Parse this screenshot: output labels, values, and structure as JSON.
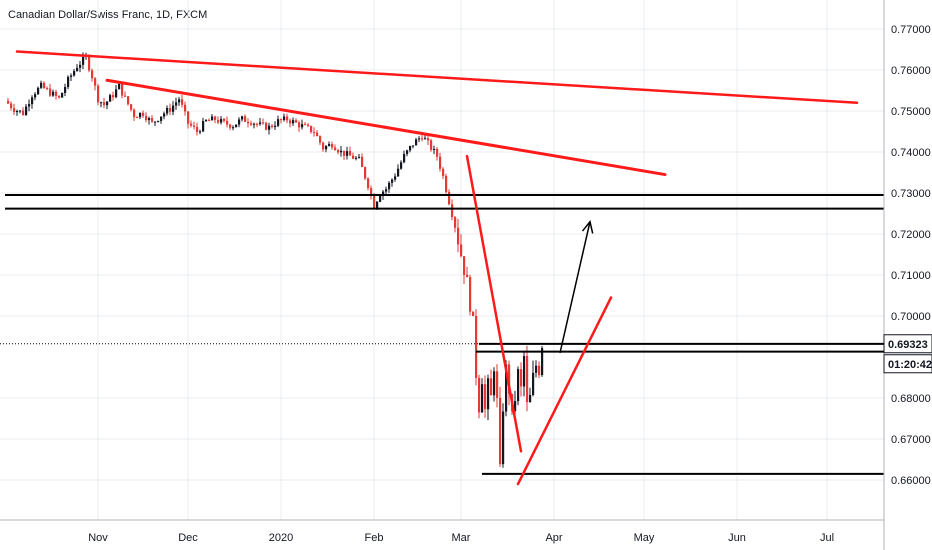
{
  "header": {
    "title": "Canadian Dollar/Swiss Franc, 1D, FXCM"
  },
  "colors": {
    "up": "#131722",
    "down": "#e53935",
    "drawing": "#ff1a1a",
    "level": "#000000",
    "grid": "#e9ecf1"
  },
  "chart_data": {
    "type": "candlestick",
    "title": "Canadian Dollar/Swiss Franc, 1D, FXCM",
    "ylim": [
      0.65,
      0.775
    ],
    "y_ticks": [
      "0.77000",
      "0.76000",
      "0.75000",
      "0.74000",
      "0.73000",
      "0.72000",
      "0.71000",
      "0.70000",
      "0.68000",
      "0.67000",
      "0.66000"
    ],
    "x_ticks": [
      {
        "label": "Nov",
        "day": 31
      },
      {
        "label": "Dec",
        "day": 61
      },
      {
        "label": "2020",
        "day": 92
      },
      {
        "label": "Feb",
        "day": 123
      },
      {
        "label": "Mar",
        "day": 152
      },
      {
        "label": "Apr",
        "day": 183
      },
      {
        "label": "May",
        "day": 213
      },
      {
        "label": "Jun",
        "day": 244
      },
      {
        "label": "Jul",
        "day": 274
      }
    ],
    "close_series": [
      [
        0,
        0.7525
      ],
      [
        3,
        0.7505
      ],
      [
        6,
        0.7495
      ],
      [
        9,
        0.754
      ],
      [
        12,
        0.756
      ],
      [
        15,
        0.7545
      ],
      [
        18,
        0.753
      ],
      [
        21,
        0.7575
      ],
      [
        24,
        0.761
      ],
      [
        27,
        0.763
      ],
      [
        29,
        0.7585
      ],
      [
        31,
        0.753
      ],
      [
        33,
        0.7515
      ],
      [
        36,
        0.754
      ],
      [
        38,
        0.756
      ],
      [
        40,
        0.753
      ],
      [
        43,
        0.749
      ],
      [
        46,
        0.7495
      ],
      [
        49,
        0.747
      ],
      [
        52,
        0.749
      ],
      [
        55,
        0.7505
      ],
      [
        58,
        0.753
      ],
      [
        61,
        0.747
      ],
      [
        64,
        0.745
      ],
      [
        67,
        0.7475
      ],
      [
        70,
        0.748
      ],
      [
        73,
        0.747
      ],
      [
        76,
        0.7465
      ],
      [
        79,
        0.748
      ],
      [
        82,
        0.7475
      ],
      [
        85,
        0.7465
      ],
      [
        88,
        0.746
      ],
      [
        91,
        0.7475
      ],
      [
        94,
        0.748
      ],
      [
        97,
        0.747
      ],
      [
        100,
        0.746
      ],
      [
        103,
        0.745
      ],
      [
        106,
        0.741
      ],
      [
        109,
        0.742
      ],
      [
        112,
        0.74
      ],
      [
        115,
        0.739
      ],
      [
        118,
        0.738
      ],
      [
        121,
        0.732
      ],
      [
        123,
        0.727
      ],
      [
        125,
        0.73
      ],
      [
        127,
        0.731
      ],
      [
        130,
        0.7345
      ],
      [
        133,
        0.739
      ],
      [
        136,
        0.742
      ],
      [
        139,
        0.744
      ],
      [
        141,
        0.742
      ],
      [
        144,
        0.739
      ],
      [
        146,
        0.734
      ],
      [
        148,
        0.728
      ],
      [
        150,
        0.722
      ],
      [
        152,
        0.715
      ],
      [
        154,
        0.708
      ],
      [
        156,
        0.698
      ],
      [
        157,
        0.686
      ],
      [
        158,
        0.678
      ],
      [
        159,
        0.685
      ],
      [
        160,
        0.677
      ],
      [
        161,
        0.683
      ],
      [
        162,
        0.68
      ],
      [
        163,
        0.688
      ],
      [
        164,
        0.679
      ],
      [
        165,
        0.662
      ],
      [
        166,
        0.678
      ],
      [
        167,
        0.687
      ],
      [
        168,
        0.682
      ],
      [
        169,
        0.675
      ],
      [
        170,
        0.68
      ],
      [
        171,
        0.686
      ],
      [
        172,
        0.682
      ],
      [
        173,
        0.69
      ],
      [
        174,
        0.678
      ],
      [
        175,
        0.68
      ],
      [
        176,
        0.685
      ],
      [
        177,
        0.688
      ],
      [
        178,
        0.687
      ],
      [
        179,
        0.6932
      ]
    ],
    "drawings": {
      "long_resistance": [
        [
          4,
          0.7645
        ],
        [
          284,
          0.752
        ]
      ],
      "descending_resistance": [
        [
          34,
          0.7575
        ],
        [
          220,
          0.7345
        ]
      ],
      "steep_downtrend": [
        [
          154,
          0.739
        ],
        [
          172,
          0.667
        ]
      ],
      "rising_support": [
        [
          171,
          0.659
        ],
        [
          202,
          0.7045
        ]
      ],
      "projection_arrow": [
        [
          185,
          0.691
        ],
        [
          195,
          0.723
        ]
      ],
      "levels": [
        {
          "price": 0.7295,
          "from_day": 0
        },
        {
          "price": 0.7262,
          "from_day": 0
        },
        {
          "price": 0.6932,
          "from_day": 158
        },
        {
          "price": 0.6913,
          "from_day": 157
        },
        {
          "price": 0.6615,
          "from_day": 159
        }
      ]
    },
    "last_price": "0.69323",
    "countdown": "01:20:42"
  }
}
